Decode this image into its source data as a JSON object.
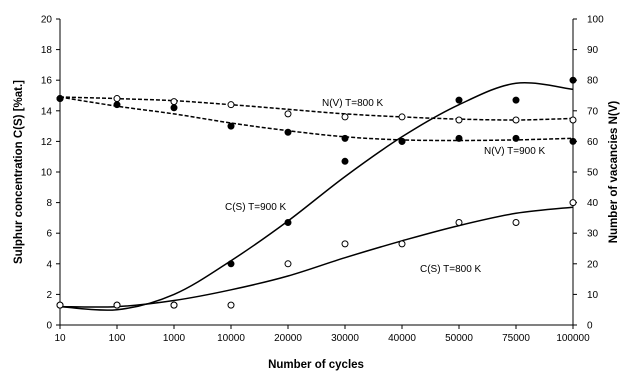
{
  "chart_data": {
    "type": "scatter",
    "title": "",
    "xlabel": "Number of cycles",
    "ylabel_left": "Sulphur concentration C(S) [%at.]",
    "ylabel_right": "Number of vacancies N(V)",
    "x_categories": [
      "10",
      "100",
      "1000",
      "10000",
      "20000",
      "30000",
      "40000",
      "50000",
      "75000",
      "100000"
    ],
    "ylim_left": [
      0,
      20
    ],
    "ylim_right": [
      0,
      100
    ],
    "yticks_left": [
      "0",
      "2",
      "4",
      "6",
      "8",
      "10",
      "12",
      "14",
      "16",
      "18",
      "20"
    ],
    "yticks_right": [
      "0",
      "10",
      "20",
      "30",
      "40",
      "50",
      "60",
      "70",
      "80",
      "90",
      "100"
    ],
    "grid": false,
    "series": [
      {
        "name": "C(S) T=900 K",
        "axis": "left",
        "marker": "filled",
        "line": "solid",
        "values": [
          1.3,
          1.3,
          1.3,
          4.0,
          6.7,
          10.7,
          12.0,
          14.7,
          14.7,
          16.0
        ],
        "fit": [
          1.2,
          1.0,
          2.0,
          4.2,
          6.8,
          9.7,
          12.3,
          14.4,
          15.8,
          15.4
        ]
      },
      {
        "name": "C(S) T=800 K",
        "axis": "left",
        "marker": "open",
        "line": "solid",
        "values": [
          1.3,
          1.3,
          1.3,
          1.3,
          4.0,
          5.3,
          5.3,
          6.7,
          6.7,
          8.0
        ],
        "fit": [
          1.2,
          1.2,
          1.6,
          2.3,
          3.2,
          4.4,
          5.5,
          6.5,
          7.3,
          7.7
        ]
      },
      {
        "name": "N(V) T=800 K",
        "axis": "right",
        "marker": "open",
        "line": "dashed",
        "values": [
          74,
          74,
          73,
          72,
          69,
          68,
          68,
          67,
          67,
          67
        ],
        "fit": [
          74.5,
          74,
          73.3,
          72,
          70.5,
          69,
          68,
          67.3,
          67,
          67.5
        ]
      },
      {
        "name": "N(V) T=900 K",
        "axis": "right",
        "marker": "filled",
        "line": "dashed",
        "values": [
          74,
          72,
          71,
          65,
          63,
          61,
          60,
          61,
          61,
          60
        ],
        "fit": [
          74.5,
          71.5,
          69,
          66,
          63.5,
          61.5,
          60.5,
          60.3,
          60.5,
          61
        ]
      }
    ],
    "annotations": [
      "N(V) T=800 K",
      "N(V) T=900 K",
      "C(S) T=900 K",
      "C(S) T=800 K"
    ]
  }
}
